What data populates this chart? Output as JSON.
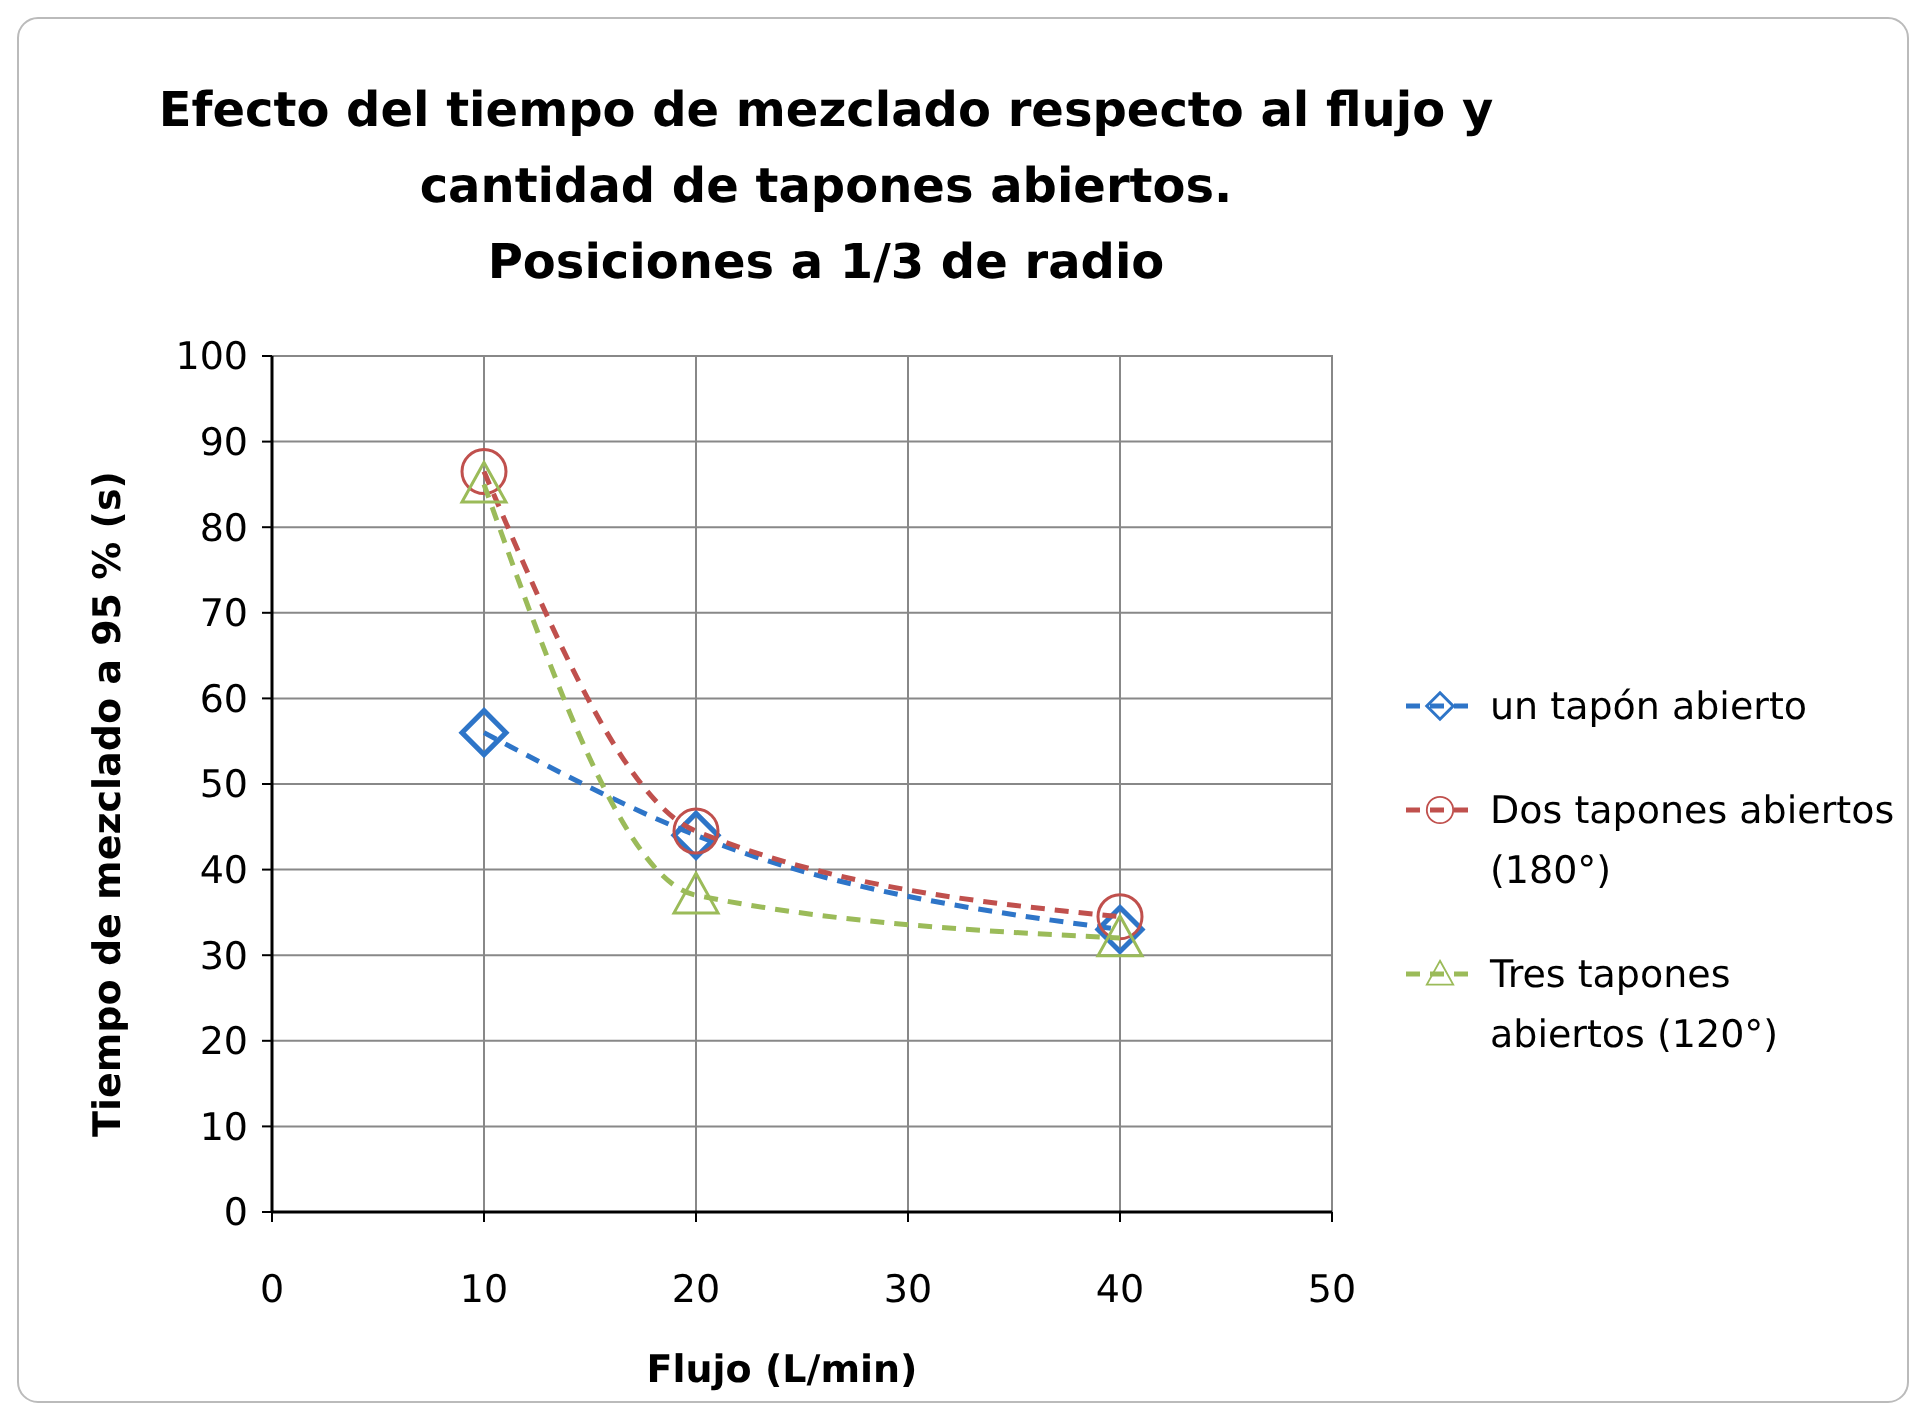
{
  "chart_data": {
    "type": "line",
    "title": "Efecto del tiempo de mezclado respecto al flujo  y\ncantidad de tapones abiertos.\nPosiciones a 1/3 de radio",
    "xlabel": "Flujo (L/min)",
    "ylabel": "Tiempo de mezclado a  95 % (s)",
    "x": [
      10,
      20,
      40
    ],
    "series": [
      {
        "name": "un tapón abierto",
        "color": "#2e75c8",
        "values": [
          56,
          44,
          33
        ],
        "marker": "diamond"
      },
      {
        "name": "Dos tapones abiertos (180°)",
        "color": "#c0504d",
        "values": [
          86.5,
          44.5,
          34.5
        ],
        "marker": "circle"
      },
      {
        "name": "Tres tapones abiertos (120°)",
        "color": "#9bbb59",
        "values": [
          85,
          37,
          32
        ],
        "marker": "triangle"
      }
    ],
    "xlim": [
      0,
      50
    ],
    "xticks": [
      0,
      10,
      20,
      30,
      40,
      50
    ],
    "ylim": [
      0,
      100
    ],
    "yticks": [
      0,
      10,
      20,
      30,
      40,
      50,
      60,
      70,
      80,
      90,
      100
    ],
    "grid": true,
    "legend": "right",
    "line_style": "dashed"
  }
}
